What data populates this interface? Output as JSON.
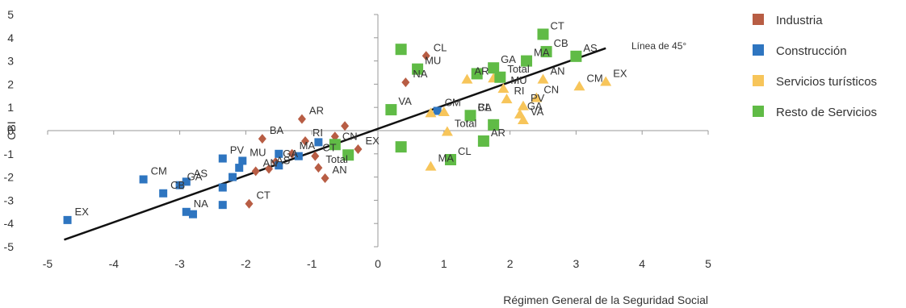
{
  "chart_data": {
    "type": "scatter",
    "xlabel": "Régimen General de la Seguridad Social",
    "ylabel": "CBI",
    "xlim": [
      -5,
      5
    ],
    "ylim": [
      -5,
      5
    ],
    "x_ticks": [
      "-5",
      "-4",
      "-3",
      "-2",
      "-1",
      "0",
      "1",
      "2",
      "3",
      "4",
      "5"
    ],
    "y_ticks": [
      "5",
      "4",
      "3",
      "2",
      "1",
      "0",
      "-1",
      "-2",
      "-3",
      "-4",
      "-5"
    ],
    "annotation": "Línea de 45°",
    "line": {
      "x": [
        -4.75,
        3.45
      ],
      "y": [
        -4.7,
        3.55
      ]
    },
    "legend_position": "right",
    "series": [
      {
        "name": "Industria",
        "color": "#b85d44",
        "marker": "diamond",
        "points": [
          {
            "label": "CL",
            "x": 0.73,
            "y": 3.22
          },
          {
            "label": "NA",
            "x": 0.42,
            "y": 2.08
          },
          {
            "label": "AR",
            "x": -1.15,
            "y": 0.5
          },
          {
            "label": "",
            "x": -0.5,
            "y": 0.2
          },
          {
            "label": "BA",
            "x": -1.75,
            "y": -0.35
          },
          {
            "label": "RI",
            "x": -1.1,
            "y": -0.45
          },
          {
            "label": "",
            "x": -0.65,
            "y": -0.25
          },
          {
            "label": "MA",
            "x": -1.3,
            "y": -1.0
          },
          {
            "label": "CT",
            "x": -0.95,
            "y": -1.1
          },
          {
            "label": "GA",
            "x": -1.55,
            "y": -1.35
          },
          {
            "label": "AS",
            "x": -1.65,
            "y": -1.65
          },
          {
            "label": "AN",
            "x": -1.85,
            "y": -1.75
          },
          {
            "label": "Total",
            "x": -0.9,
            "y": -1.6
          },
          {
            "label": "AN",
            "x": -0.8,
            "y": -2.05
          },
          {
            "label": "CT",
            "x": -1.95,
            "y": -3.15
          },
          {
            "label": "EX",
            "x": -0.3,
            "y": -0.8
          }
        ]
      },
      {
        "name": "Construcción",
        "color": "#2e75c0",
        "marker": "square",
        "points": [
          {
            "label": "CM",
            "x": 0.9,
            "y": 0.85
          },
          {
            "label": "",
            "x": -0.9,
            "y": -0.5
          },
          {
            "label": "",
            "x": -1.5,
            "y": -1.0
          },
          {
            "label": "",
            "x": -1.2,
            "y": -1.1
          },
          {
            "label": "PV",
            "x": -2.35,
            "y": -1.2
          },
          {
            "label": "MU",
            "x": -2.05,
            "y": -1.3
          },
          {
            "label": "",
            "x": -2.1,
            "y": -1.6
          },
          {
            "label": "",
            "x": -1.5,
            "y": -1.5
          },
          {
            "label": "",
            "x": -2.2,
            "y": -2.0
          },
          {
            "label": "CM",
            "x": -3.55,
            "y": -2.1
          },
          {
            "label": "AS",
            "x": -2.9,
            "y": -2.2
          },
          {
            "label": "GA",
            "x": -3.0,
            "y": -2.35
          },
          {
            "label": "",
            "x": -2.35,
            "y": -2.45
          },
          {
            "label": "CB",
            "x": -3.25,
            "y": -2.7
          },
          {
            "label": "",
            "x": -2.35,
            "y": -3.2
          },
          {
            "label": "NA",
            "x": -2.9,
            "y": -3.5
          },
          {
            "label": "",
            "x": -2.8,
            "y": -3.6
          },
          {
            "label": "EX",
            "x": -4.7,
            "y": -3.85
          }
        ]
      },
      {
        "name": "Servicios turísticos",
        "color": "#f7c55a",
        "marker": "triangle",
        "points": [
          {
            "label": "AR",
            "x": 1.35,
            "y": 2.2
          },
          {
            "label": "",
            "x": 1.75,
            "y": 2.25
          },
          {
            "label": "AN",
            "x": 2.5,
            "y": 2.2
          },
          {
            "label": "EX",
            "x": 3.45,
            "y": 2.1
          },
          {
            "label": "CM",
            "x": 3.05,
            "y": 1.9
          },
          {
            "label": "MU",
            "x": 1.9,
            "y": 1.8
          },
          {
            "label": "CN",
            "x": 2.4,
            "y": 1.4
          },
          {
            "label": "RI",
            "x": 1.95,
            "y": 1.35
          },
          {
            "label": "PV",
            "x": 2.2,
            "y": 1.05
          },
          {
            "label": "GA",
            "x": 2.15,
            "y": 0.7
          },
          {
            "label": "VA",
            "x": 2.2,
            "y": 0.45
          },
          {
            "label": "CL",
            "x": 1.4,
            "y": 0.65
          },
          {
            "label": "",
            "x": 1.0,
            "y": 0.8
          },
          {
            "label": "",
            "x": 0.8,
            "y": 0.75
          },
          {
            "label": "Total",
            "x": 1.05,
            "y": -0.05
          },
          {
            "label": "MA",
            "x": 0.8,
            "y": -1.55
          }
        ]
      },
      {
        "name": "Resto de Servicios",
        "color": "#60bb46",
        "marker": "square",
        "points": [
          {
            "label": "CT",
            "x": 2.5,
            "y": 4.15
          },
          {
            "label": "",
            "x": 0.35,
            "y": 3.5
          },
          {
            "label": "CB",
            "x": 2.55,
            "y": 3.4
          },
          {
            "label": "AS",
            "x": 3.0,
            "y": 3.2
          },
          {
            "label": "MA",
            "x": 2.25,
            "y": 3.0
          },
          {
            "label": "GA",
            "x": 1.75,
            "y": 2.7
          },
          {
            "label": "MU",
            "x": 0.6,
            "y": 2.65
          },
          {
            "label": "",
            "x": 1.5,
            "y": 2.45
          },
          {
            "label": "Total",
            "x": 1.85,
            "y": 2.3
          },
          {
            "label": "VA",
            "x": 0.2,
            "y": 0.9
          },
          {
            "label": "BA",
            "x": 1.4,
            "y": 0.65
          },
          {
            "label": "",
            "x": 1.75,
            "y": 0.25
          },
          {
            "label": "AR",
            "x": 1.6,
            "y": -0.45
          },
          {
            "label": "CL",
            "x": 1.1,
            "y": -1.25
          },
          {
            "label": "",
            "x": 0.35,
            "y": -0.7
          },
          {
            "label": "CN",
            "x": -0.65,
            "y": -0.6
          },
          {
            "label": "",
            "x": -0.45,
            "y": -1.05
          }
        ]
      }
    ]
  }
}
